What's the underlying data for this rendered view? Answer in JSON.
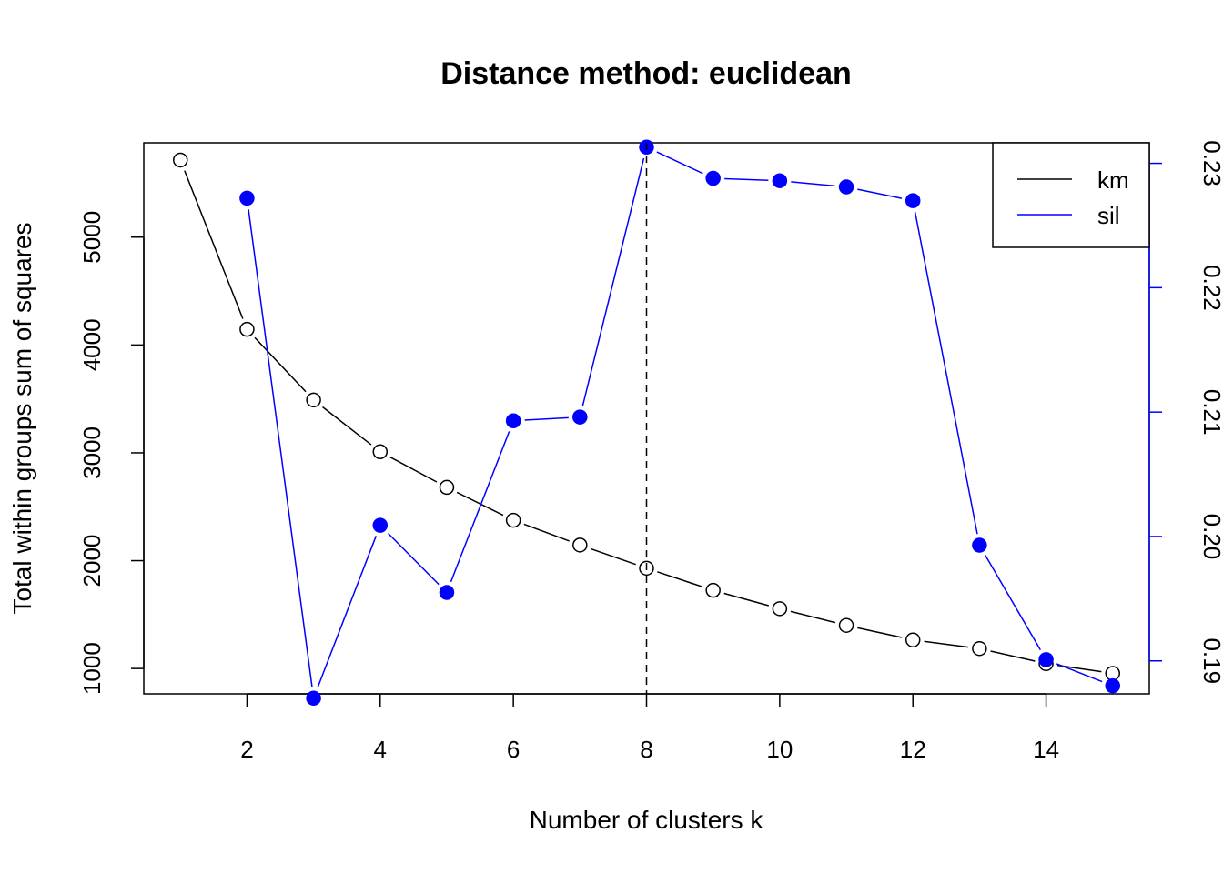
{
  "chart_data": {
    "type": "line",
    "title": "Distance method: euclidean",
    "xlabel": "Number of clusters k",
    "ylabel": "Total within groups sum of squares",
    "xlim": [
      0.45,
      15.55
    ],
    "ylim_left": [
      765,
      5875
    ],
    "ylim_right": [
      0.18735,
      0.23165
    ],
    "x_ticks": [
      2,
      4,
      6,
      8,
      10,
      12,
      14
    ],
    "y_ticks_left": [
      1000,
      2000,
      3000,
      4000,
      5000
    ],
    "y_ticks_right": [
      0.19,
      0.2,
      0.21,
      0.22,
      0.23
    ],
    "y_tick_labels_right": [
      "0.19",
      "0.20",
      "0.21",
      "0.22",
      "0.23"
    ],
    "vline_x": 8,
    "grid": false,
    "legend_position": "top-right",
    "series": [
      {
        "name": "km",
        "axis": "left",
        "color": "#000000",
        "marker": "open-circle",
        "x": [
          1,
          2,
          3,
          4,
          5,
          6,
          7,
          8,
          9,
          10,
          11,
          12,
          13,
          14,
          15
        ],
        "y": [
          5715,
          4145,
          3490,
          3010,
          2680,
          2375,
          2145,
          1930,
          1725,
          1555,
          1400,
          1265,
          1185,
          1045,
          955
        ]
      },
      {
        "name": "sil",
        "axis": "right",
        "color": "#0000ff",
        "marker": "filled-circle",
        "x": [
          2,
          3,
          4,
          5,
          6,
          7,
          8,
          9,
          10,
          11,
          12,
          13,
          14,
          15
        ],
        "y": [
          0.2272,
          0.187,
          0.2009,
          0.1955,
          0.2093,
          0.2096,
          0.2313,
          0.2288,
          0.2286,
          0.2281,
          0.227,
          0.1993,
          0.1901,
          0.188
        ]
      }
    ]
  }
}
